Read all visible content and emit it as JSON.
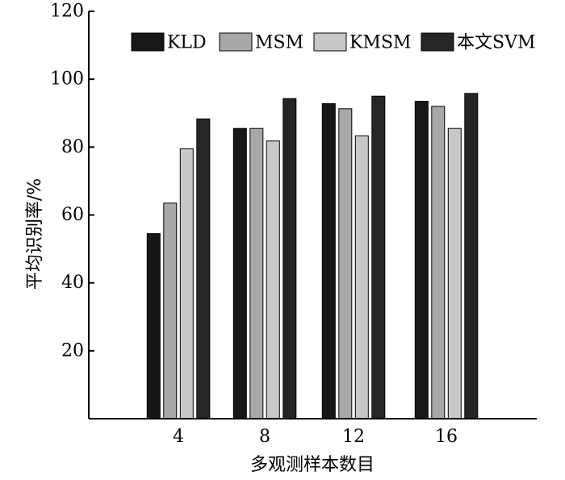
{
  "chart_data": {
    "type": "bar",
    "xlabel": "多观测样本数目",
    "ylabel": "平均识别率/%",
    "categories": [
      "4",
      "8",
      "12",
      "16"
    ],
    "yticks": [
      "20",
      "40",
      "60",
      "80",
      "100",
      "120"
    ],
    "ylim": [
      0,
      120
    ],
    "grid": false,
    "legend_position": "top-right",
    "series": [
      {
        "name": "KLD",
        "color": "#171717",
        "values": [
          54.5,
          85.5,
          92.8,
          93.5
        ]
      },
      {
        "name": "MSM",
        "color": "#a8a8a8",
        "values": [
          63.5,
          85.5,
          91.3,
          92.0
        ]
      },
      {
        "name": "KMSM",
        "color": "#c8c8c8",
        "values": [
          79.5,
          81.8,
          83.3,
          85.5
        ]
      },
      {
        "name": "本文SVM",
        "color": "#262626",
        "values": [
          88.3,
          94.3,
          95.0,
          95.8
        ]
      }
    ]
  }
}
